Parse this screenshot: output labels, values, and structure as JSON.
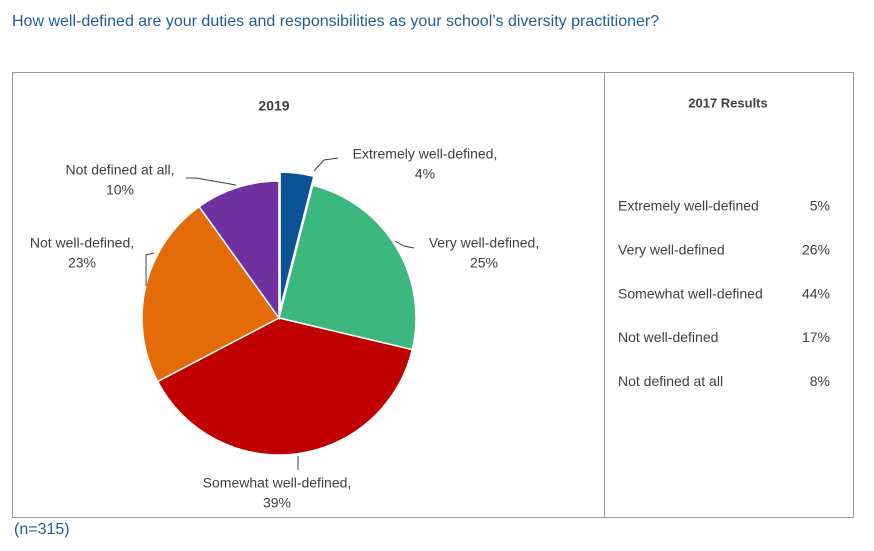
{
  "question": "How well-defined are your duties and responsibilities as your school’s diversity practitioner?",
  "chart_data": {
    "type": "pie",
    "title": "2019",
    "categories": [
      "Extremely well-defined,",
      "Very well-defined,",
      "Somewhat well-defined,",
      "Not well-defined,",
      "Not defined at all,"
    ],
    "values": [
      4,
      25,
      39,
      23,
      10
    ],
    "value_labels": [
      "4%",
      "25%",
      "39%",
      "23%",
      "10%"
    ],
    "colors": [
      "#0b5394",
      "#3cb77d",
      "#c00000",
      "#e36c09",
      "#7030a0"
    ]
  },
  "results_2017": {
    "title": "2017 Results",
    "rows": [
      [
        "Extremely well-defined",
        "5%"
      ],
      [
        "Very well-defined",
        "26%"
      ],
      [
        "Somewhat well-defined",
        "44%"
      ],
      [
        "Not well-defined",
        "17%"
      ],
      [
        "Not defined at all",
        "8%"
      ]
    ]
  },
  "note": "(n=315)"
}
